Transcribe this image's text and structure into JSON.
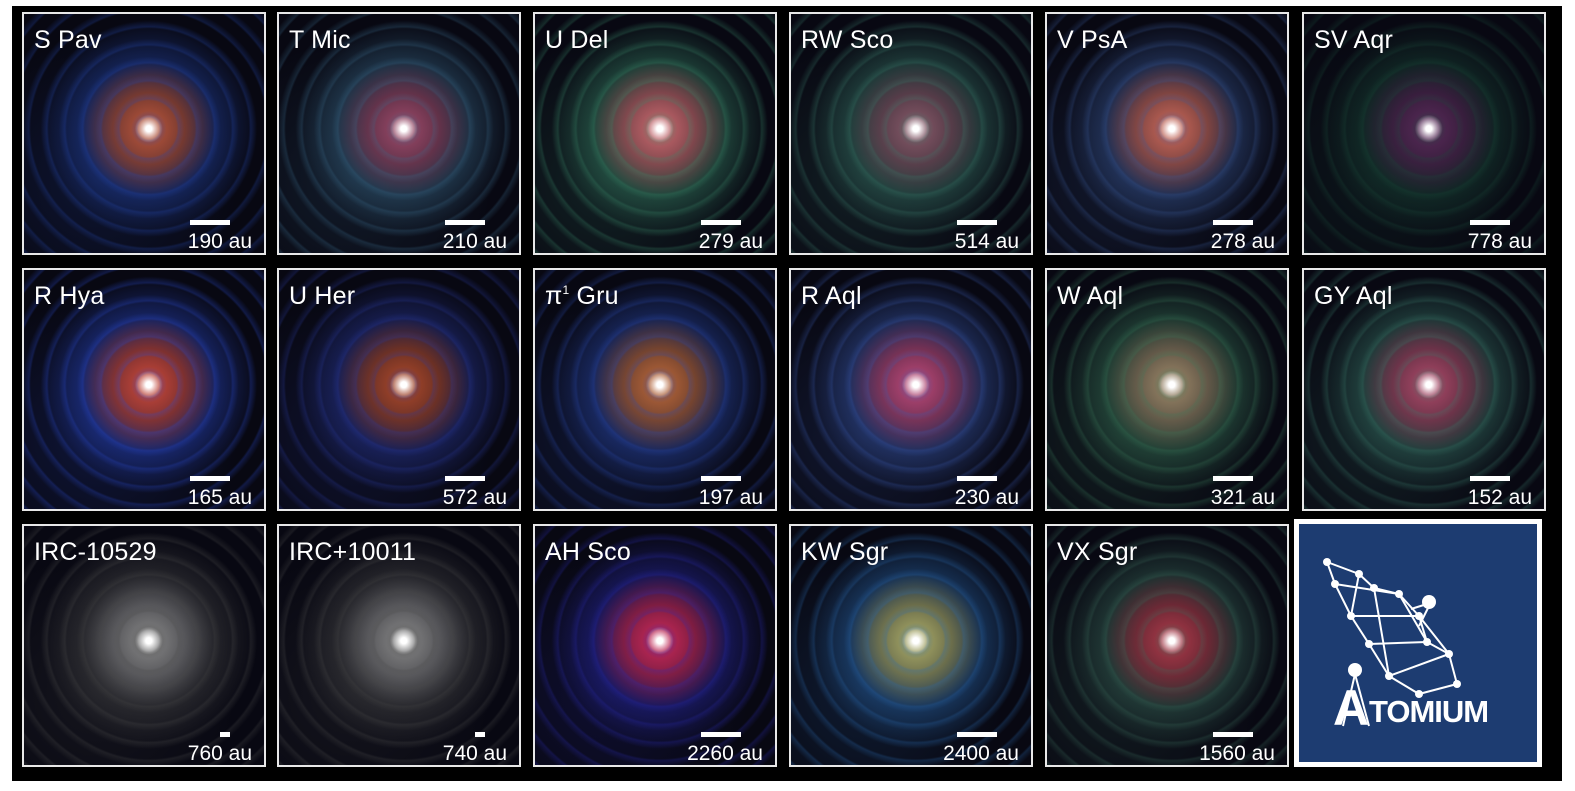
{
  "panels": [
    {
      "name": "S Pav",
      "scale": "190 au",
      "hue": "#c0583c",
      "hue2": "#2548b0"
    },
    {
      "name": "T Mic",
      "scale": "210 au",
      "hue": "#a04a6a",
      "hue2": "#3a6a8a"
    },
    {
      "name": "U Del",
      "scale": "279 au",
      "hue": "#d06a70",
      "hue2": "#3a8a6a"
    },
    {
      "name": "RW Sco",
      "scale": "514 au",
      "hue": "#8a5a6a",
      "hue2": "#3a7a6a"
    },
    {
      "name": "V PsA",
      "scale": "278 au",
      "hue": "#d06a5a",
      "hue2": "#3a5a9a"
    },
    {
      "name": "SV Aqr",
      "scale": "778 au",
      "hue": "#5a2a5a",
      "hue2": "#1a4a3a"
    },
    {
      "name": "R Hya",
      "scale": "165 au",
      "hue": "#d04a3a",
      "hue2": "#2a4ad0"
    },
    {
      "name": "U Her",
      "scale": "572 au",
      "hue": "#b04a2a",
      "hue2": "#2a3aa0"
    },
    {
      "name": "Gru",
      "name_prefix": "π",
      "name_sup": "1",
      "scale": "197 au",
      "hue": "#c06a3a",
      "hue2": "#2a4ab0"
    },
    {
      "name": "R Aql",
      "scale": "230 au",
      "hue": "#c04a7a",
      "hue2": "#3a5ab0"
    },
    {
      "name": "W Aql",
      "scale": "321 au",
      "hue": "#a08a6a",
      "hue2": "#3a7a5a"
    },
    {
      "name": "GY Aql",
      "scale": "152 au",
      "hue": "#b04a6a",
      "hue2": "#3a7a6a"
    },
    {
      "name": "IRC-10529",
      "scale": "760 au",
      "hue": "#8a8a8a",
      "hue2": "#4a4a4a"
    },
    {
      "name": "IRC+10011",
      "scale": "740 au",
      "hue": "#8a8a8a",
      "hue2": "#4a4a4a"
    },
    {
      "name": "AH Sco",
      "scale": "2260 au",
      "hue": "#d02a5a",
      "hue2": "#2a2ab0"
    },
    {
      "name": "KW Sgr",
      "scale": "2400 au",
      "hue": "#b0b06a",
      "hue2": "#2a6ab0"
    },
    {
      "name": "VX Sgr",
      "scale": "1560 au",
      "hue": "#b03a4a",
      "hue2": "#3a6a5a"
    }
  ],
  "logo": {
    "text": "TOMIUM",
    "big_letter": "A",
    "bg": "#1d3c71"
  }
}
